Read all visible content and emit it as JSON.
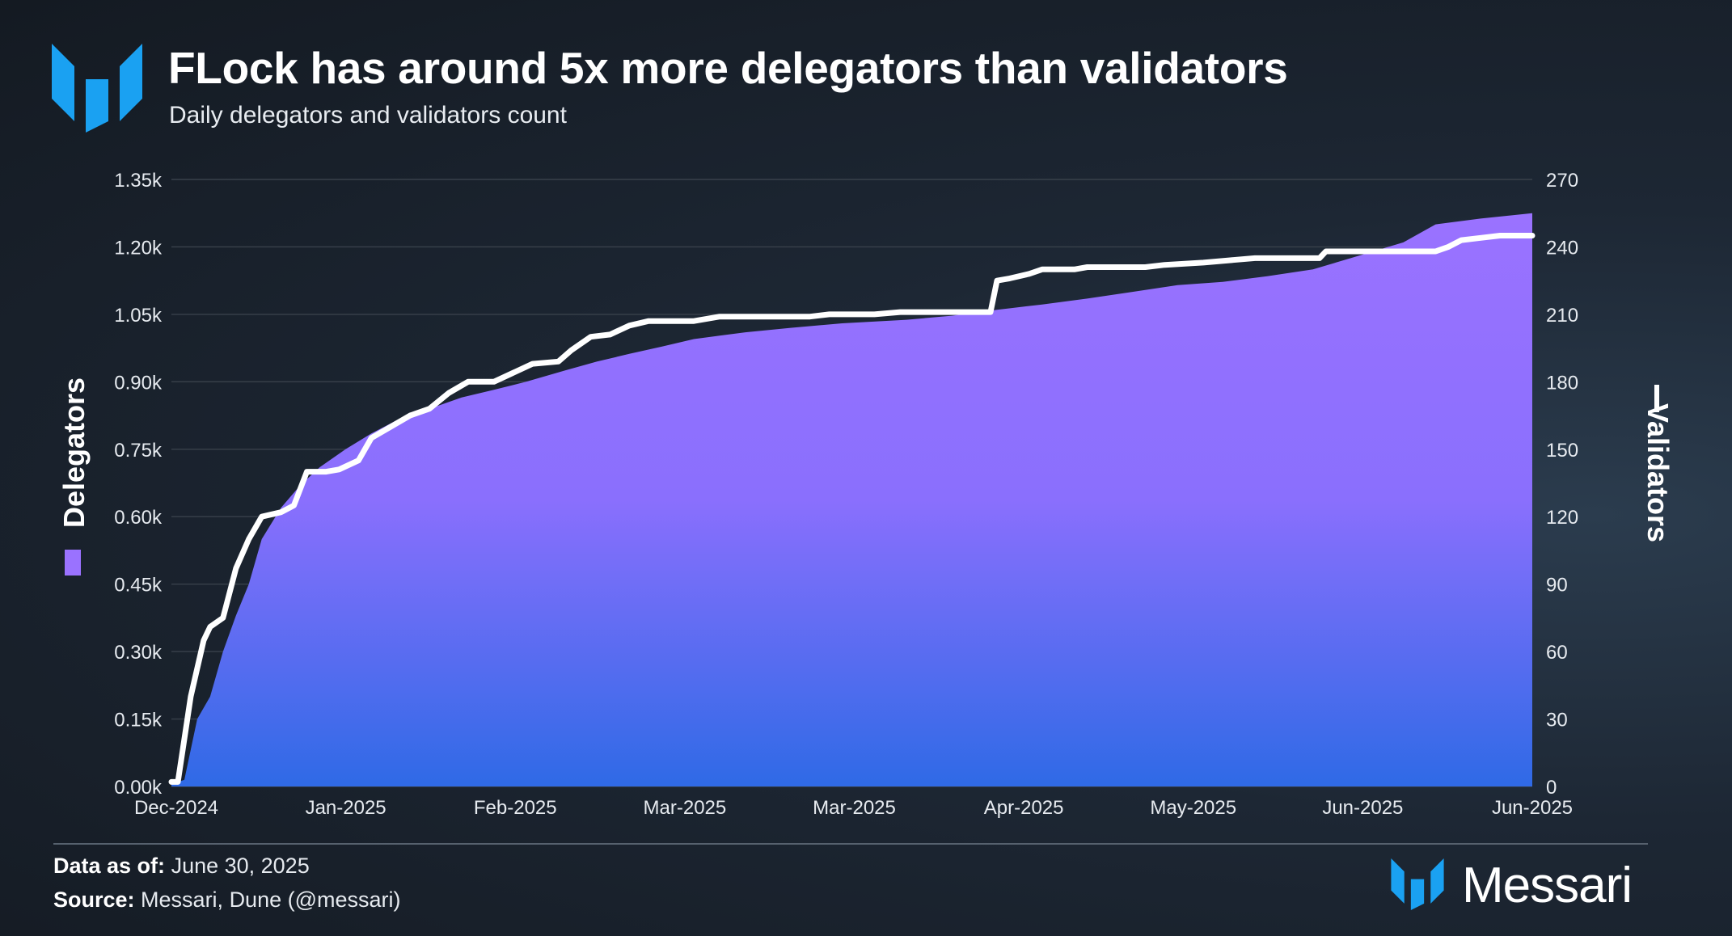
{
  "header": {
    "title": "FLock has around 5x more delegators than validators",
    "subtitle": "Daily delegators and validators count"
  },
  "footer": {
    "data_as_of_label": "Data as of:",
    "data_as_of_value": "June 30, 2025",
    "source_label": "Source:",
    "source_value": "Messari, Dune (@messari)"
  },
  "brand": {
    "name": "Messari"
  },
  "colors": {
    "accent": "#1aa1f2",
    "area_top": "#9a72ff",
    "area_bottom": "#2f6ae6",
    "line": "#ffffff",
    "grid": "#3a424c",
    "text": "#ffffff"
  },
  "icons": {
    "logo": "messari-logo-icon"
  },
  "chart_data": {
    "type": "area",
    "grid": true,
    "x_tick_labels": [
      "Dec-2024",
      "Jan-2025",
      "Feb-2025",
      "Mar-2025",
      "Mar-2025",
      "Apr-2025",
      "May-2025",
      "Jun-2025",
      "Jun-2025"
    ],
    "x_range": [
      "2024-12-01",
      "2025-06-30"
    ],
    "y_left": {
      "label": "Delegators",
      "range": [
        0,
        1350
      ],
      "ticks": [
        "0.00k",
        "0.15k",
        "0.30k",
        "0.45k",
        "0.60k",
        "0.75k",
        "0.90k",
        "1.05k",
        "1.20k",
        "1.35k"
      ]
    },
    "y_right": {
      "label": "Validators",
      "range": [
        0,
        270
      ],
      "ticks": [
        "0",
        "30",
        "60",
        "90",
        "120",
        "150",
        "180",
        "210",
        "240",
        "270"
      ]
    },
    "series": [
      {
        "name": "Delegators",
        "type": "area",
        "axis": "left",
        "points": [
          [
            "2024-12-01",
            5
          ],
          [
            "2024-12-03",
            15
          ],
          [
            "2024-12-05",
            150
          ],
          [
            "2024-12-07",
            200
          ],
          [
            "2024-12-09",
            300
          ],
          [
            "2024-12-11",
            380
          ],
          [
            "2024-12-13",
            450
          ],
          [
            "2024-12-15",
            550
          ],
          [
            "2024-12-18",
            620
          ],
          [
            "2024-12-21",
            670
          ],
          [
            "2024-12-24",
            710
          ],
          [
            "2024-12-28",
            750
          ],
          [
            "2025-01-01",
            785
          ],
          [
            "2025-01-05",
            815
          ],
          [
            "2025-01-10",
            840
          ],
          [
            "2025-01-15",
            865
          ],
          [
            "2025-01-20",
            882
          ],
          [
            "2025-01-25",
            900
          ],
          [
            "2025-01-31",
            925
          ],
          [
            "2025-02-05",
            945
          ],
          [
            "2025-02-10",
            962
          ],
          [
            "2025-02-15",
            978
          ],
          [
            "2025-02-20",
            995
          ],
          [
            "2025-02-28",
            1010
          ],
          [
            "2025-03-07",
            1020
          ],
          [
            "2025-03-15",
            1030
          ],
          [
            "2025-03-25",
            1038
          ],
          [
            "2025-04-01",
            1047
          ],
          [
            "2025-04-08",
            1060
          ],
          [
            "2025-04-15",
            1072
          ],
          [
            "2025-04-22",
            1085
          ],
          [
            "2025-04-29",
            1100
          ],
          [
            "2025-05-06",
            1115
          ],
          [
            "2025-05-13",
            1122
          ],
          [
            "2025-05-20",
            1135
          ],
          [
            "2025-05-27",
            1150
          ],
          [
            "2025-06-03",
            1180
          ],
          [
            "2025-06-10",
            1210
          ],
          [
            "2025-06-15",
            1250
          ],
          [
            "2025-06-22",
            1263
          ],
          [
            "2025-06-30",
            1275
          ]
        ]
      },
      {
        "name": "Validators",
        "type": "line",
        "axis": "right",
        "points": [
          [
            "2024-12-01",
            2
          ],
          [
            "2024-12-02",
            2
          ],
          [
            "2024-12-04",
            40
          ],
          [
            "2024-12-06",
            65
          ],
          [
            "2024-12-07",
            71
          ],
          [
            "2024-12-09",
            75
          ],
          [
            "2024-12-11",
            97
          ],
          [
            "2024-12-13",
            110
          ],
          [
            "2024-12-15",
            120
          ],
          [
            "2024-12-18",
            122
          ],
          [
            "2024-12-20",
            125
          ],
          [
            "2024-12-22",
            140
          ],
          [
            "2024-12-25",
            140
          ],
          [
            "2024-12-27",
            141
          ],
          [
            "2024-12-30",
            145
          ],
          [
            "2025-01-01",
            155
          ],
          [
            "2025-01-04",
            160
          ],
          [
            "2025-01-07",
            165
          ],
          [
            "2025-01-10",
            168
          ],
          [
            "2025-01-13",
            175
          ],
          [
            "2025-01-16",
            180
          ],
          [
            "2025-01-20",
            180
          ],
          [
            "2025-01-23",
            184
          ],
          [
            "2025-01-26",
            188
          ],
          [
            "2025-01-30",
            189
          ],
          [
            "2025-02-01",
            194
          ],
          [
            "2025-02-04",
            200
          ],
          [
            "2025-02-07",
            201
          ],
          [
            "2025-02-10",
            205
          ],
          [
            "2025-02-13",
            207
          ],
          [
            "2025-02-20",
            207
          ],
          [
            "2025-02-24",
            209
          ],
          [
            "2025-03-10",
            209
          ],
          [
            "2025-03-13",
            210
          ],
          [
            "2025-03-20",
            210
          ],
          [
            "2025-03-24",
            211
          ],
          [
            "2025-04-07",
            211
          ],
          [
            "2025-04-08",
            225
          ],
          [
            "2025-04-10",
            226
          ],
          [
            "2025-04-13",
            228
          ],
          [
            "2025-04-15",
            230
          ],
          [
            "2025-04-20",
            230
          ],
          [
            "2025-04-22",
            231
          ],
          [
            "2025-05-01",
            231
          ],
          [
            "2025-05-04",
            232
          ],
          [
            "2025-05-10",
            233
          ],
          [
            "2025-05-14",
            234
          ],
          [
            "2025-05-18",
            235
          ],
          [
            "2025-05-28",
            235
          ],
          [
            "2025-05-29",
            238
          ],
          [
            "2025-06-15",
            238
          ],
          [
            "2025-06-17",
            240
          ],
          [
            "2025-06-19",
            243
          ],
          [
            "2025-06-22",
            244
          ],
          [
            "2025-06-25",
            245
          ],
          [
            "2025-06-30",
            245
          ]
        ]
      }
    ]
  }
}
